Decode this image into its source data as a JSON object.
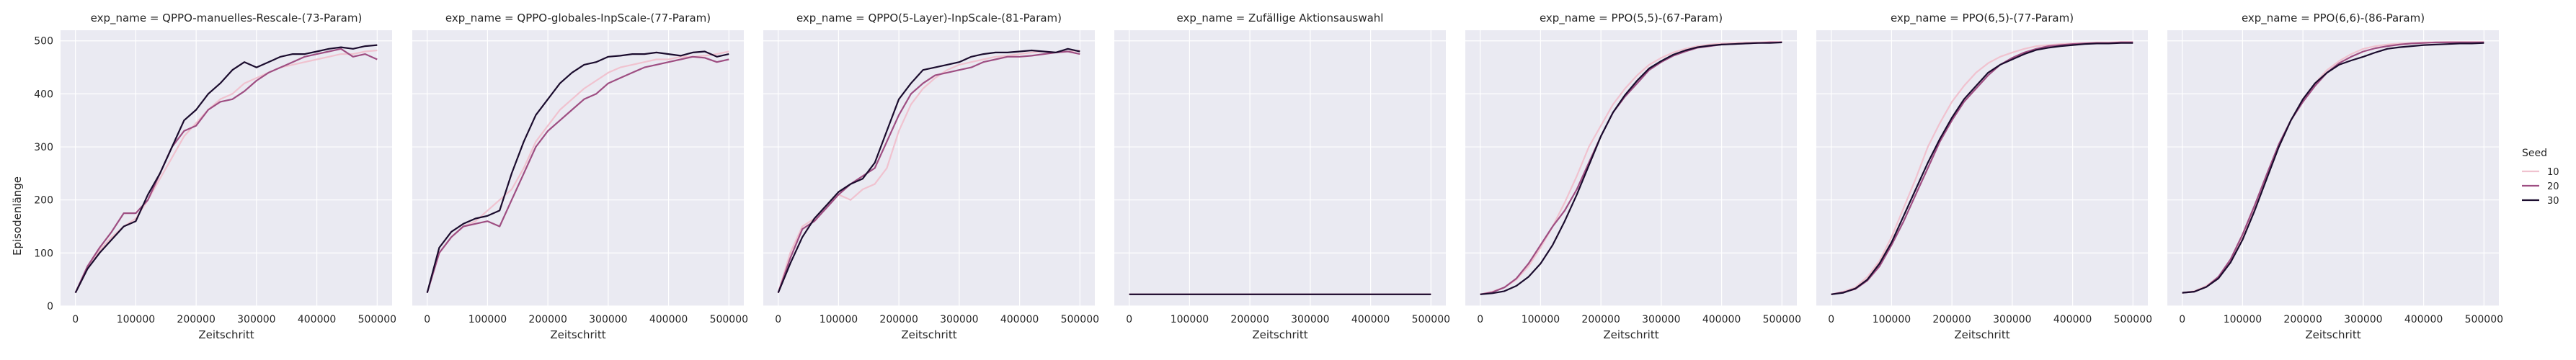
{
  "figure": {
    "ylabel": "Episodenlänge",
    "xlabel": "Zeitschritt",
    "legend": {
      "title": "Seed",
      "entries": [
        "10",
        "20",
        "30"
      ],
      "placement": "right"
    },
    "style": {
      "panel_bg": "#eaeaf2",
      "grid": "#ffffff",
      "series_colors": {
        "10": "#f0c2cf",
        "20": "#9e4e82",
        "30": "#1b0c2e"
      }
    }
  },
  "chart_data": [
    {
      "type": "line",
      "title": "exp_name = QPPO-manuelles-Rescale-(73-Param)",
      "xlabel": "Zeitschritt",
      "ylabel": "Episodenlänge",
      "xlim": [
        0,
        500000
      ],
      "ylim": [
        0,
        520
      ],
      "xticks": [
        0,
        100000,
        200000,
        300000,
        400000,
        500000
      ],
      "yticks": [
        0,
        100,
        200,
        300,
        400,
        500
      ],
      "grid": true,
      "x": [
        0,
        20000,
        40000,
        60000,
        80000,
        100000,
        120000,
        140000,
        160000,
        180000,
        200000,
        220000,
        240000,
        260000,
        280000,
        300000,
        320000,
        340000,
        360000,
        380000,
        400000,
        420000,
        440000,
        460000,
        480000,
        500000
      ],
      "series": [
        {
          "name": "10",
          "values": [
            25,
            70,
            105,
            130,
            150,
            165,
            200,
            240,
            280,
            320,
            345,
            370,
            390,
            400,
            420,
            430,
            440,
            450,
            455,
            460,
            465,
            470,
            475,
            475,
            480,
            482
          ]
        },
        {
          "name": "20",
          "values": [
            25,
            75,
            110,
            140,
            175,
            175,
            200,
            250,
            300,
            330,
            340,
            370,
            385,
            390,
            405,
            425,
            440,
            450,
            460,
            470,
            475,
            480,
            485,
            470,
            475,
            465
          ]
        },
        {
          "name": "30",
          "values": [
            25,
            70,
            100,
            125,
            150,
            160,
            210,
            250,
            300,
            350,
            370,
            400,
            420,
            445,
            460,
            450,
            460,
            470,
            475,
            475,
            480,
            485,
            488,
            485,
            490,
            492
          ]
        }
      ]
    },
    {
      "type": "line",
      "title": "exp_name = QPPO-globales-InpScale-(77-Param)",
      "xlabel": "Zeitschritt",
      "ylabel": "",
      "xlim": [
        0,
        500000
      ],
      "ylim": [
        0,
        520
      ],
      "xticks": [
        0,
        100000,
        200000,
        300000,
        400000,
        500000
      ],
      "yticks": [
        0,
        100,
        200,
        300,
        400,
        500
      ],
      "grid": true,
      "x": [
        0,
        20000,
        40000,
        60000,
        80000,
        100000,
        120000,
        140000,
        160000,
        180000,
        200000,
        220000,
        240000,
        260000,
        280000,
        300000,
        320000,
        340000,
        360000,
        380000,
        400000,
        420000,
        440000,
        460000,
        480000,
        500000
      ],
      "series": [
        {
          "name": "10",
          "values": [
            25,
            100,
            130,
            150,
            160,
            180,
            200,
            220,
            260,
            310,
            340,
            370,
            390,
            410,
            425,
            440,
            450,
            455,
            460,
            465,
            465,
            470,
            470,
            472,
            475,
            480
          ]
        },
        {
          "name": "20",
          "values": [
            25,
            100,
            130,
            150,
            155,
            160,
            150,
            200,
            250,
            300,
            330,
            350,
            370,
            390,
            400,
            420,
            430,
            440,
            450,
            455,
            460,
            465,
            470,
            468,
            460,
            465
          ]
        },
        {
          "name": "30",
          "values": [
            25,
            110,
            140,
            155,
            165,
            170,
            180,
            250,
            310,
            360,
            390,
            420,
            440,
            455,
            460,
            470,
            472,
            475,
            475,
            478,
            475,
            472,
            478,
            480,
            470,
            475
          ]
        }
      ]
    },
    {
      "type": "line",
      "title": "exp_name = QPPO(5-Layer)-InpScale-(81-Param)",
      "xlabel": "Zeitschritt",
      "ylabel": "",
      "xlim": [
        0,
        500000
      ],
      "ylim": [
        0,
        520
      ],
      "xticks": [
        0,
        100000,
        200000,
        300000,
        400000,
        500000
      ],
      "yticks": [
        0,
        100,
        200,
        300,
        400,
        500
      ],
      "grid": true,
      "x": [
        0,
        20000,
        40000,
        60000,
        80000,
        100000,
        120000,
        140000,
        160000,
        180000,
        200000,
        220000,
        240000,
        260000,
        280000,
        300000,
        320000,
        340000,
        360000,
        380000,
        400000,
        420000,
        440000,
        460000,
        480000,
        500000
      ],
      "series": [
        {
          "name": "10",
          "values": [
            25,
            100,
            150,
            165,
            190,
            210,
            200,
            220,
            230,
            260,
            330,
            380,
            410,
            430,
            445,
            455,
            460,
            465,
            470,
            472,
            475,
            478,
            480,
            478,
            480,
            482
          ]
        },
        {
          "name": "20",
          "values": [
            25,
            90,
            145,
            160,
            185,
            210,
            230,
            245,
            260,
            310,
            360,
            400,
            420,
            435,
            440,
            445,
            450,
            460,
            465,
            470,
            470,
            472,
            475,
            478,
            480,
            475
          ]
        },
        {
          "name": "30",
          "values": [
            25,
            80,
            130,
            165,
            190,
            215,
            230,
            240,
            270,
            330,
            390,
            420,
            445,
            450,
            455,
            460,
            470,
            475,
            478,
            478,
            480,
            482,
            480,
            478,
            485,
            480
          ]
        }
      ]
    },
    {
      "type": "line",
      "title": "exp_name = Zufällige Aktionsauswahl",
      "xlabel": "Zeitschritt",
      "ylabel": "",
      "xlim": [
        0,
        500000
      ],
      "ylim": [
        0,
        520
      ],
      "xticks": [
        0,
        100000,
        200000,
        300000,
        400000,
        500000
      ],
      "yticks": [
        0,
        100,
        200,
        300,
        400,
        500
      ],
      "grid": true,
      "x": [
        0,
        100000,
        200000,
        300000,
        400000,
        500000
      ],
      "series": [
        {
          "name": "10",
          "values": [
            22,
            22,
            22,
            22,
            22,
            22
          ]
        },
        {
          "name": "20",
          "values": [
            22,
            22,
            22,
            22,
            22,
            22
          ]
        },
        {
          "name": "30",
          "values": [
            22,
            22,
            22,
            22,
            22,
            22
          ]
        }
      ]
    },
    {
      "type": "line",
      "title": "exp_name = PPO(5,5)-(67-Param)",
      "xlabel": "Zeitschritt",
      "ylabel": "",
      "xlim": [
        0,
        500000
      ],
      "ylim": [
        0,
        520
      ],
      "xticks": [
        0,
        100000,
        200000,
        300000,
        400000,
        500000
      ],
      "yticks": [
        0,
        100,
        200,
        300,
        400,
        500
      ],
      "grid": true,
      "x": [
        0,
        20000,
        40000,
        60000,
        80000,
        100000,
        120000,
        140000,
        160000,
        180000,
        200000,
        220000,
        240000,
        260000,
        280000,
        300000,
        320000,
        340000,
        360000,
        380000,
        400000,
        420000,
        440000,
        460000,
        480000,
        500000
      ],
      "series": [
        {
          "name": "10",
          "values": [
            22,
            27,
            35,
            50,
            75,
            110,
            150,
            195,
            245,
            300,
            340,
            380,
            410,
            435,
            455,
            468,
            478,
            485,
            490,
            493,
            495,
            496,
            497,
            497,
            498,
            498
          ]
        },
        {
          "name": "20",
          "values": [
            22,
            26,
            35,
            52,
            80,
            115,
            150,
            180,
            220,
            270,
            320,
            365,
            395,
            420,
            445,
            460,
            472,
            480,
            487,
            490,
            493,
            494,
            495,
            496,
            497,
            497
          ]
        },
        {
          "name": "30",
          "values": [
            22,
            24,
            28,
            38,
            55,
            80,
            115,
            160,
            210,
            265,
            320,
            365,
            398,
            425,
            448,
            462,
            474,
            482,
            488,
            491,
            493,
            494,
            495,
            496,
            496,
            497
          ]
        }
      ]
    },
    {
      "type": "line",
      "title": "exp_name = PPO(6,5)-(77-Param)",
      "xlabel": "Zeitschritt",
      "ylabel": "",
      "xlim": [
        0,
        500000
      ],
      "ylim": [
        0,
        520
      ],
      "xticks": [
        0,
        100000,
        200000,
        300000,
        400000,
        500000
      ],
      "yticks": [
        0,
        100,
        200,
        300,
        400,
        500
      ],
      "grid": true,
      "x": [
        0,
        20000,
        40000,
        60000,
        80000,
        100000,
        120000,
        140000,
        160000,
        180000,
        200000,
        220000,
        240000,
        260000,
        280000,
        300000,
        320000,
        340000,
        360000,
        380000,
        400000,
        420000,
        440000,
        460000,
        480000,
        500000
      ],
      "series": [
        {
          "name": "10",
          "values": [
            22,
            27,
            35,
            55,
            85,
            130,
            185,
            240,
            300,
            345,
            385,
            415,
            440,
            458,
            470,
            478,
            485,
            490,
            492,
            494,
            495,
            496,
            497,
            497,
            498,
            498
          ]
        },
        {
          "name": "20",
          "values": [
            22,
            26,
            32,
            48,
            75,
            115,
            160,
            210,
            260,
            310,
            350,
            385,
            410,
            435,
            455,
            468,
            478,
            485,
            490,
            492,
            494,
            495,
            496,
            496,
            497,
            497
          ]
        },
        {
          "name": "30",
          "values": [
            22,
            25,
            33,
            50,
            80,
            120,
            170,
            220,
            270,
            315,
            355,
            390,
            415,
            440,
            455,
            465,
            475,
            483,
            487,
            490,
            492,
            494,
            495,
            495,
            496,
            496
          ]
        }
      ]
    },
    {
      "type": "line",
      "title": "exp_name = PPO(6,6)-(86-Param)",
      "xlabel": "Zeitschritt",
      "ylabel": "",
      "xlim": [
        0,
        500000
      ],
      "ylim": [
        0,
        520
      ],
      "xticks": [
        0,
        100000,
        200000,
        300000,
        400000,
        500000
      ],
      "yticks": [
        0,
        100,
        200,
        300,
        400,
        500
      ],
      "grid": true,
      "x": [
        0,
        20000,
        40000,
        60000,
        80000,
        100000,
        120000,
        140000,
        160000,
        180000,
        200000,
        220000,
        240000,
        260000,
        280000,
        300000,
        320000,
        340000,
        360000,
        380000,
        400000,
        420000,
        440000,
        460000,
        480000,
        500000
      ],
      "series": [
        {
          "name": "10",
          "values": [
            25,
            28,
            38,
            55,
            85,
            130,
            185,
            245,
            300,
            350,
            390,
            420,
            445,
            462,
            475,
            485,
            490,
            493,
            495,
            496,
            497,
            497,
            498,
            498,
            498,
            498
          ]
        },
        {
          "name": "20",
          "values": [
            25,
            27,
            36,
            55,
            88,
            135,
            190,
            248,
            305,
            350,
            385,
            415,
            440,
            458,
            470,
            480,
            486,
            490,
            493,
            495,
            496,
            497,
            497,
            497,
            497,
            497
          ]
        },
        {
          "name": "30",
          "values": [
            25,
            27,
            36,
            52,
            82,
            125,
            180,
            240,
            300,
            350,
            390,
            420,
            440,
            455,
            463,
            470,
            478,
            485,
            488,
            490,
            492,
            493,
            494,
            495,
            495,
            496
          ]
        }
      ]
    }
  ]
}
